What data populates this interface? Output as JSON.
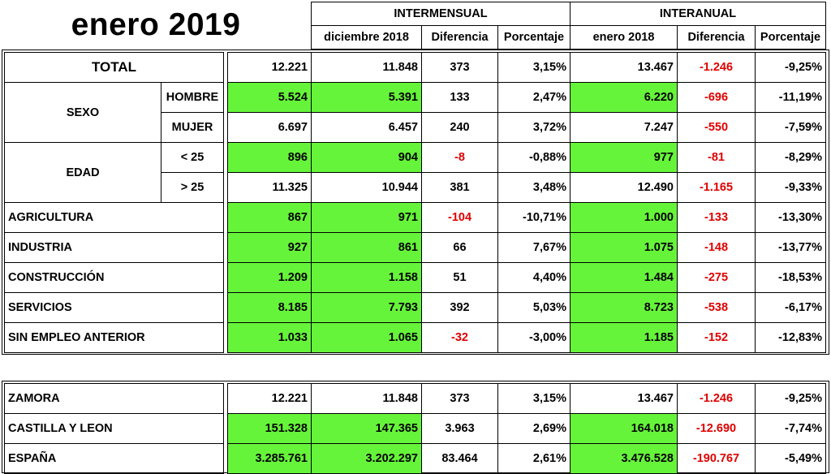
{
  "title": "enero 2019",
  "header": {
    "intermensual": "INTERMENSUAL",
    "interanual": "INTERANUAL",
    "columns": [
      "diciembre 2018",
      "Diferencia",
      "Porcentaje",
      "enero 2018",
      "Diferencia",
      "Porcentaje"
    ]
  },
  "rows": {
    "total": {
      "label": "TOTAL",
      "v": [
        "12.221",
        "11.848",
        "373",
        "3,15%",
        "13.467",
        "-1.246",
        "-9,25%"
      ]
    },
    "sexo": {
      "label": "SEXO",
      "hombre": {
        "label": "HOMBRE",
        "v": [
          "5.524",
          "5.391",
          "133",
          "2,47%",
          "6.220",
          "-696",
          "-11,19%"
        ]
      },
      "mujer": {
        "label": "MUJER",
        "v": [
          "6.697",
          "6.457",
          "240",
          "3,72%",
          "7.247",
          "-550",
          "-7,59%"
        ]
      }
    },
    "edad": {
      "label": "EDAD",
      "menor": {
        "label": "< 25",
        "v": [
          "896",
          "904",
          "-8",
          "-0,88%",
          "977",
          "-81",
          "-8,29%"
        ]
      },
      "mayor": {
        "label": "> 25",
        "v": [
          "11.325",
          "10.944",
          "381",
          "3,48%",
          "12.490",
          "-1.165",
          "-9,33%"
        ]
      }
    },
    "agricultura": {
      "label": "AGRICULTURA",
      "v": [
        "867",
        "971",
        "-104",
        "-10,71%",
        "1.000",
        "-133",
        "-13,30%"
      ]
    },
    "industria": {
      "label": "INDUSTRIA",
      "v": [
        "927",
        "861",
        "66",
        "7,67%",
        "1.075",
        "-148",
        "-13,77%"
      ]
    },
    "construccion": {
      "label": "CONSTRUCCIÓN",
      "v": [
        "1.209",
        "1.158",
        "51",
        "4,40%",
        "1.484",
        "-275",
        "-18,53%"
      ]
    },
    "servicios": {
      "label": "SERVICIOS",
      "v": [
        "8.185",
        "7.793",
        "392",
        "5,03%",
        "8.723",
        "-538",
        "-6,17%"
      ]
    },
    "sin_empleo": {
      "label": "SIN EMPLEO ANTERIOR",
      "v": [
        "1.033",
        "1.065",
        "-32",
        "-3,00%",
        "1.185",
        "-152",
        "-12,83%"
      ]
    }
  },
  "regions": {
    "zamora": {
      "label": "ZAMORA",
      "v": [
        "12.221",
        "11.848",
        "373",
        "3,15%",
        "13.467",
        "-1.246",
        "-9,25%"
      ]
    },
    "castilla": {
      "label": "CASTILLA Y LEON",
      "v": [
        "151.328",
        "147.365",
        "3.963",
        "2,69%",
        "164.018",
        "-12.690",
        "-7,74%"
      ]
    },
    "espana": {
      "label": "ESPAÑA",
      "v": [
        "3.285.761",
        "3.202.297",
        "83.464",
        "2,61%",
        "3.476.528",
        "-190.767",
        "-5,49%"
      ]
    }
  },
  "colors": {
    "highlight": "#66f43a",
    "negative": "#e00000"
  }
}
